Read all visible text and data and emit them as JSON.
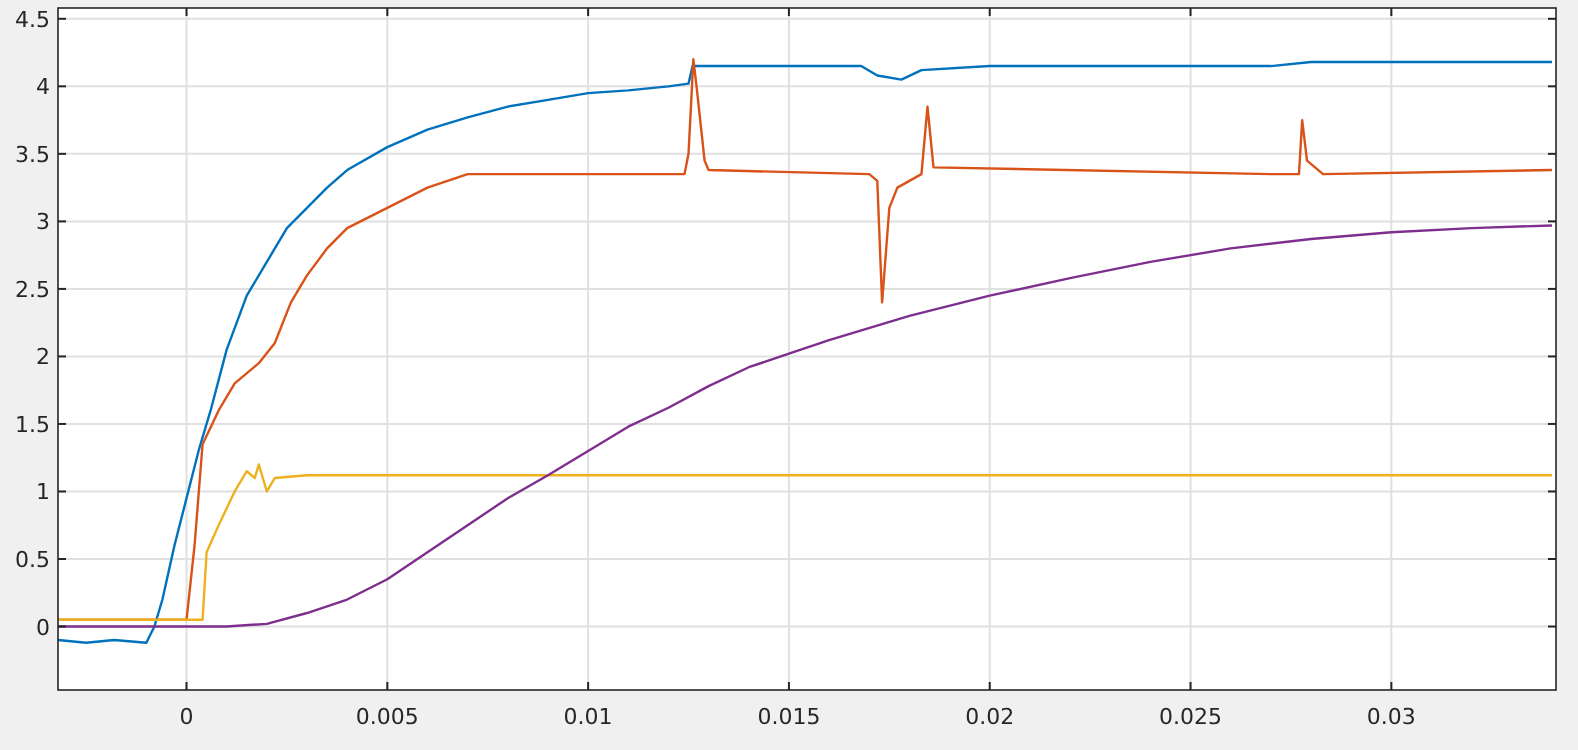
{
  "chart_data": {
    "type": "line",
    "xlim": [
      -0.0032,
      0.0341
    ],
    "ylim": [
      -0.47,
      4.58
    ],
    "xticks": [
      0,
      0.005,
      0.01,
      0.015,
      0.02,
      0.025,
      0.03
    ],
    "yticks": [
      0,
      0.5,
      1,
      1.5,
      2,
      2.5,
      3,
      3.5,
      4,
      4.5
    ],
    "grid": true,
    "marker": "none",
    "line_style": "solid",
    "series": [
      {
        "color": "#0072bd",
        "x": [
          -0.0032,
          -0.0025,
          -0.0018,
          -0.001,
          -0.0008,
          -0.0006,
          -0.0003,
          0,
          0.0003,
          0.0006,
          0.001,
          0.0015,
          0.002,
          0.0025,
          0.003,
          0.0035,
          0.004,
          0.005,
          0.006,
          0.007,
          0.008,
          0.009,
          0.01,
          0.011,
          0.012,
          0.0125,
          0.0126,
          0.014,
          0.016,
          0.0168,
          0.0172,
          0.0178,
          0.0183,
          0.02,
          0.025,
          0.027,
          0.028,
          0.03,
          0.034
        ],
        "values": [
          -0.1,
          -0.12,
          -0.1,
          -0.12,
          0,
          0.2,
          0.6,
          0.95,
          1.3,
          1.6,
          2.05,
          2.45,
          2.7,
          2.95,
          3.1,
          3.25,
          3.38,
          3.55,
          3.68,
          3.77,
          3.85,
          3.9,
          3.95,
          3.97,
          4.0,
          4.02,
          4.15,
          4.15,
          4.15,
          4.15,
          4.08,
          4.05,
          4.12,
          4.15,
          4.15,
          4.15,
          4.18,
          4.18,
          4.18
        ]
      },
      {
        "color": "#d95319",
        "x": [
          -0.0032,
          -0.002,
          -0.001,
          0,
          0.0002,
          0.0004,
          0.0008,
          0.0012,
          0.0018,
          0.0022,
          0.0026,
          0.003,
          0.0035,
          0.004,
          0.005,
          0.006,
          0.007,
          0.009,
          0.0124,
          0.0125,
          0.01262,
          0.0127,
          0.0129,
          0.013,
          0.017,
          0.0172,
          0.01732,
          0.0175,
          0.0177,
          0.0183,
          0.01845,
          0.0186,
          0.027,
          0.0277,
          0.02778,
          0.0279,
          0.0283,
          0.034
        ],
        "values": [
          0.05,
          0.05,
          0.05,
          0.05,
          0.6,
          1.35,
          1.6,
          1.8,
          1.95,
          2.1,
          2.4,
          2.6,
          2.8,
          2.95,
          3.1,
          3.25,
          3.35,
          3.35,
          3.35,
          3.5,
          4.2,
          4.0,
          3.45,
          3.38,
          3.35,
          3.3,
          2.4,
          3.1,
          3.25,
          3.35,
          3.85,
          3.4,
          3.35,
          3.35,
          3.75,
          3.45,
          3.35,
          3.38
        ]
      },
      {
        "color": "#edb120",
        "x": [
          -0.0032,
          -0.002,
          -0.001,
          0,
          0.0004,
          0.0005,
          0.0008,
          0.0012,
          0.0015,
          0.0017,
          0.0018,
          0.002,
          0.0022,
          0.003,
          0.01,
          0.02,
          0.03,
          0.034
        ],
        "values": [
          0.05,
          0.05,
          0.05,
          0.05,
          0.05,
          0.55,
          0.75,
          1.0,
          1.15,
          1.1,
          1.2,
          1.0,
          1.1,
          1.12,
          1.12,
          1.12,
          1.12,
          1.12
        ]
      },
      {
        "color": "#7e2f8e",
        "x": [
          -0.0032,
          -0.002,
          0,
          0.001,
          0.002,
          0.003,
          0.004,
          0.005,
          0.006,
          0.007,
          0.008,
          0.009,
          0.01,
          0.011,
          0.012,
          0.013,
          0.014,
          0.015,
          0.016,
          0.018,
          0.02,
          0.022,
          0.024,
          0.026,
          0.028,
          0.03,
          0.032,
          0.034
        ],
        "values": [
          0.0,
          0.0,
          0.0,
          0.0,
          0.02,
          0.1,
          0.2,
          0.35,
          0.55,
          0.75,
          0.95,
          1.12,
          1.3,
          1.48,
          1.62,
          1.78,
          1.92,
          2.02,
          2.12,
          2.3,
          2.45,
          2.58,
          2.7,
          2.8,
          2.87,
          2.92,
          2.95,
          2.97
        ]
      }
    ]
  }
}
